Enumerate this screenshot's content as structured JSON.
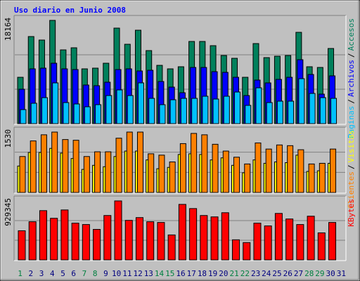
{
  "chart_data": {
    "type": "bar",
    "title": "Uso diario en Junio 2008",
    "background": "#c0c0c0",
    "grid": true,
    "legend_separator": "/",
    "categories": [
      "1",
      "2",
      "3",
      "4",
      "5",
      "6",
      "7",
      "8",
      "9",
      "10",
      "11",
      "12",
      "13",
      "14",
      "15",
      "16",
      "17",
      "18",
      "19",
      "20",
      "21",
      "22",
      "23",
      "24",
      "25",
      "26",
      "27",
      "28",
      "29",
      "30",
      "31"
    ],
    "category_colors": [
      "#008040",
      "#00007f",
      "#00007f",
      "#00007f",
      "#00007f",
      "#00007f",
      "#008040",
      "#008040",
      "#00007f",
      "#00007f",
      "#00007f",
      "#00007f",
      "#00007f",
      "#008040",
      "#008040",
      "#00007f",
      "#00007f",
      "#00007f",
      "#00007f",
      "#00007f",
      "#008040",
      "#008040",
      "#00007f",
      "#00007f",
      "#00007f",
      "#00007f",
      "#00007f",
      "#008040",
      "#008040",
      "#00007f",
      "#00007f"
    ],
    "panels": [
      {
        "ylim": [
          0,
          18164
        ],
        "yticks": [
          18164
        ],
        "series": [
          {
            "name": "Accesos",
            "color": "#00805c",
            "values": [
              8155,
              15322,
              14704,
              18164,
              12974,
              13345,
              9638,
              9762,
              10626,
              16805,
              13963,
              16434,
              12851,
              10256,
              9638,
              10009,
              14457,
              14457,
              13716,
              11986,
              11492,
              8155,
              14086,
              11615,
              11862,
              11986,
              16063,
              10009,
              9885,
              13221,
              null
            ]
          },
          {
            "name": "Archivos",
            "color": "#0000ff",
            "values": [
              6055,
              9638,
              9762,
              10626,
              9638,
              9514,
              6796,
              6673,
              7290,
              9514,
              9638,
              9267,
              9391,
              7414,
              6425,
              5437,
              9885,
              9885,
              9144,
              9020,
              8155,
              4943,
              7661,
              7167,
              7785,
              8155,
              11244,
              8650,
              5190,
              8402,
              null
            ]
          },
          {
            "name": "Paginas",
            "color": "#00c0ff",
            "values": [
              2471,
              3583,
              4572,
              7167,
              3707,
              3460,
              2966,
              3336,
              4943,
              5931,
              4943,
              7167,
              4448,
              3336,
              4201,
              4448,
              4448,
              4819,
              4325,
              4819,
              5560,
              3213,
              6302,
              3707,
              3954,
              3954,
              7908,
              5313,
              4572,
              4448,
              null
            ]
          }
        ]
      },
      {
        "ylim": [
          0,
          1530
        ],
        "yticks": [
          1530
        ],
        "series": [
          {
            "name": "Visitas",
            "color": "#ffff00",
            "values": [
              670,
              1014,
              1014,
              1117,
              997,
              860,
              585,
              688,
              653,
              911,
              1049,
              1049,
              825,
              602,
              636,
              963,
              980,
              963,
              825,
              877,
              688,
              499,
              825,
              739,
              774,
              756,
              946,
              533,
              550,
              739,
              null
            ]
          },
          {
            "name": "Clientes",
            "color": "#ff8000",
            "values": [
              911,
              1306,
              1461,
              1530,
              1341,
              1323,
              911,
              1031,
              1031,
              1375,
              1530,
              1530,
              980,
              946,
              774,
              1238,
              1496,
              1461,
              1221,
              1049,
              894,
              722,
              1255,
              1100,
              1204,
              1186,
              1083,
              722,
              739,
              1100,
              null
            ]
          }
        ]
      },
      {
        "ylim": [
          0,
          929345
        ],
        "yticks": [
          929345
        ],
        "series": [
          {
            "name": "KBytes",
            "color": "#ff0000",
            "values": [
              459218,
              601335,
              776248,
              656008,
              787181,
              579469,
              557607,
              481080,
              699737,
              929345,
              623202,
              666941,
              601335,
              590402,
              393605,
              874678,
              809077,
              699737,
              677875,
              743476,
              317063,
              273337,
              579469,
              535738,
              732542,
              645074,
              557607,
              688803,
              426400,
              590402,
              null
            ]
          }
        ]
      }
    ]
  }
}
